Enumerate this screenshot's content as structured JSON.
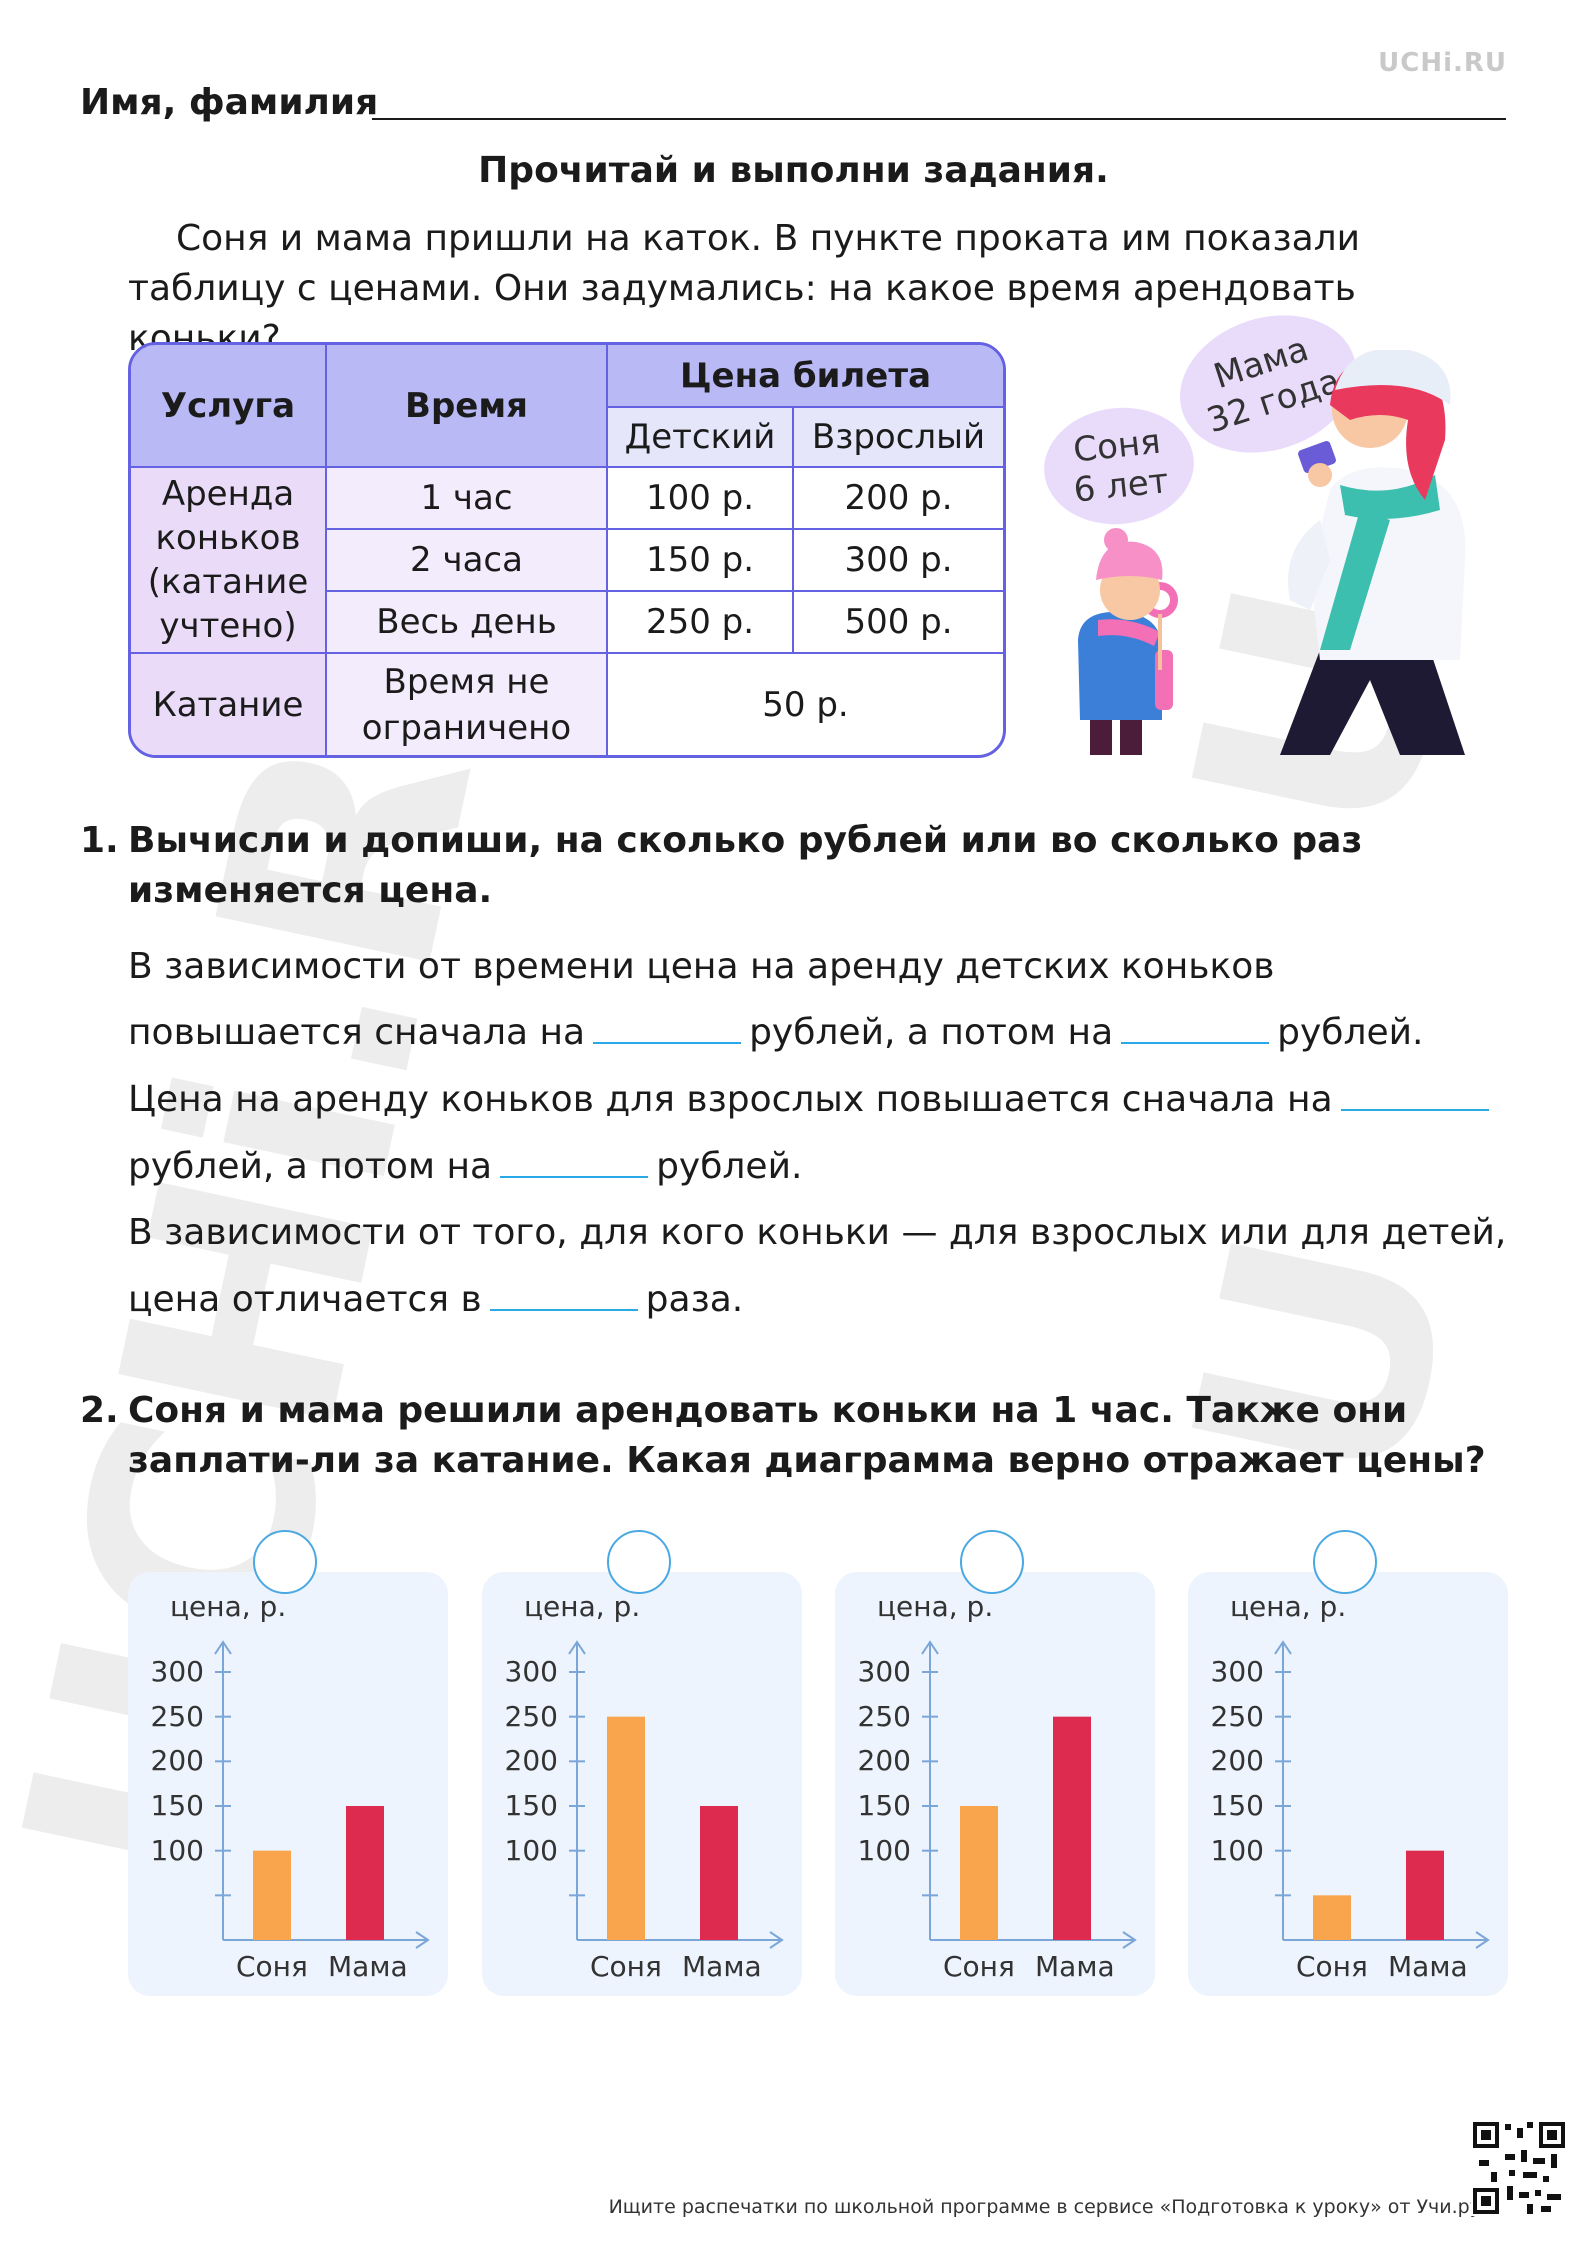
{
  "brand": "UCHi.RU",
  "watermark": "UCHi.RU",
  "name_label": "Имя, фамилия",
  "heading": "Прочитай и выполни задания.",
  "intro": "Соня и мама пришли на каток. В пункте проката им показали таблицу с ценами. Они задумались: на какое время арендовать коньки?",
  "table": {
    "h_service": "Услуга",
    "h_time": "Время",
    "h_price": "Цена билета",
    "h_child": "Детский",
    "h_adult": "Взрослый",
    "rental_label": "Аренда коньков (катание учтено)",
    "rows": [
      {
        "time": "1 час",
        "child": "100 р.",
        "adult": "200 р."
      },
      {
        "time": "2 часа",
        "child": "150 р.",
        "adult": "300 р."
      },
      {
        "time": "Весь день",
        "child": "250 р.",
        "adult": "500 р."
      }
    ],
    "skating_label": "Катание",
    "skating_time": "Время не ограничено",
    "skating_price": "50 р."
  },
  "bubbles": {
    "sonya": "Соня 6 лет",
    "mama": "Мама 32 года"
  },
  "task1": {
    "num": "1.",
    "title": "Вычисли и допиши, на сколько рублей или во сколько раз изменяется цена.",
    "l1": "В зависимости от времени цена на аренду детских коньков",
    "l2a": "повышается сначала на",
    "l2b": "рублей, а потом на",
    "l2c": "рублей.",
    "l3a": "Цена на аренду коньков для взрослых повышается сначала на",
    "l4a": "рублей, а потом на",
    "l4b": "рублей.",
    "l5": "В зависимости от того, для кого коньки — для взрослых или для детей,",
    "l6a": "цена отличается в",
    "l6b": "раза."
  },
  "task2": {
    "num": "2.",
    "title": "Соня и мама решили арендовать коньки на 1 час. Также они заплати-ли за катание. Какая диаграмма верно отражает цены?"
  },
  "chart_data": [
    {
      "type": "bar",
      "ylabel": "цена, р.",
      "categories": [
        "Соня",
        "Мама"
      ],
      "values": [
        100,
        150
      ],
      "yticks": [
        100,
        150,
        200,
        250,
        300
      ],
      "colors": [
        "#f9a54d",
        "#dc2b4e"
      ]
    },
    {
      "type": "bar",
      "ylabel": "цена, р.",
      "categories": [
        "Соня",
        "Мама"
      ],
      "values": [
        250,
        150
      ],
      "yticks": [
        100,
        150,
        200,
        250,
        300
      ],
      "colors": [
        "#f9a54d",
        "#dc2b4e"
      ]
    },
    {
      "type": "bar",
      "ylabel": "цена, р.",
      "categories": [
        "Соня",
        "Мама"
      ],
      "values": [
        150,
        250
      ],
      "yticks": [
        100,
        150,
        200,
        250,
        300
      ],
      "colors": [
        "#f9a54d",
        "#dc2b4e"
      ]
    },
    {
      "type": "bar",
      "ylabel": "цена, р.",
      "categories": [
        "Соня",
        "Мама"
      ],
      "values": [
        50,
        100
      ],
      "yticks": [
        100,
        150,
        200,
        250,
        300
      ],
      "colors": [
        "#f9a54d",
        "#dc2b4e"
      ]
    }
  ],
  "footer": "Ищите распечатки по школьной программе в сервисе «Подготовка к уроку» от Учи.ру."
}
